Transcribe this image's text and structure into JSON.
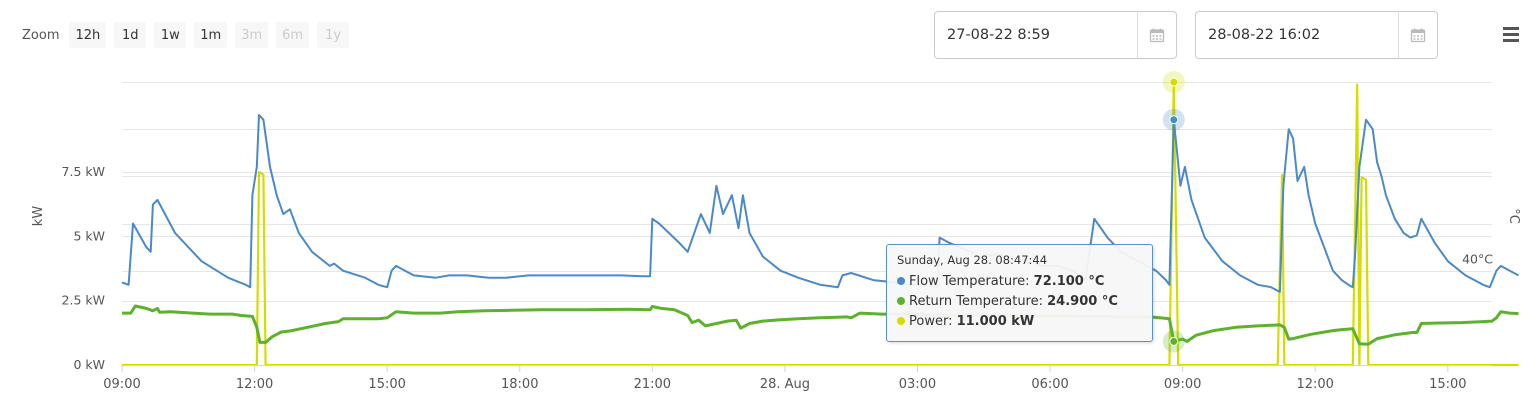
{
  "zoom": {
    "label": "Zoom",
    "buttons": [
      {
        "label": "12h",
        "enabled": true
      },
      {
        "label": "1d",
        "enabled": true
      },
      {
        "label": "1w",
        "enabled": true
      },
      {
        "label": "1m",
        "enabled": true
      },
      {
        "label": "3m",
        "enabled": false
      },
      {
        "label": "6m",
        "enabled": false
      },
      {
        "label": "1y",
        "enabled": false
      }
    ]
  },
  "range": {
    "from": "27-08-22 8:59",
    "to": "28-08-22 16:02"
  },
  "tooltip": {
    "title": "Sunday, Aug 28. 08:47:44",
    "rows": [
      {
        "name": "Flow Temperature",
        "value": "72.100 °C",
        "color": "#4a8ac8"
      },
      {
        "name": "Return Temperature",
        "value": "24.900 °C",
        "color": "#5db22d"
      },
      {
        "name": "Power",
        "value": "11.000 kW",
        "color": "#d4dd00"
      }
    ]
  },
  "chart_data": {
    "type": "line",
    "x_unit": "hours from 27 Aug 09:00",
    "xlim": [
      0,
      31
    ],
    "x_ticks": [
      {
        "t": 0,
        "label": "09:00"
      },
      {
        "t": 3,
        "label": "12:00"
      },
      {
        "t": 6,
        "label": "15:00"
      },
      {
        "t": 9,
        "label": "18:00"
      },
      {
        "t": 12,
        "label": "21:00"
      },
      {
        "t": 15,
        "label": "28. Aug"
      },
      {
        "t": 18,
        "label": "03:00"
      },
      {
        "t": 21,
        "label": "06:00"
      },
      {
        "t": 24,
        "label": "09:00"
      },
      {
        "t": 27,
        "label": "12:00"
      },
      {
        "t": 30,
        "label": "15:00"
      }
    ],
    "y_left": {
      "label": "kW",
      "ylim": [
        0,
        11
      ],
      "ticks": [
        {
          "v": 0,
          "label": "0 kW"
        },
        {
          "v": 2.5,
          "label": "2.5 kW"
        },
        {
          "v": 5,
          "label": "5 kW"
        },
        {
          "v": 7.5,
          "label": "7.5 kW"
        }
      ]
    },
    "y_right": {
      "label": "°C",
      "ylim": [
        20,
        80
      ],
      "ticks": [
        {
          "v": 40,
          "label": "40°C"
        }
      ]
    },
    "grid": true,
    "series": [
      {
        "name": "Flow Temperature",
        "axis": "right",
        "color": "#4a8ac8",
        "points": [
          [
            0,
            37.5
          ],
          [
            0.15,
            37
          ],
          [
            0.25,
            50
          ],
          [
            0.55,
            45
          ],
          [
            0.65,
            44
          ],
          [
            0.7,
            54
          ],
          [
            0.8,
            55
          ],
          [
            1.2,
            48
          ],
          [
            1.8,
            42
          ],
          [
            2.4,
            38.5
          ],
          [
            2.8,
            37
          ],
          [
            2.9,
            36.5
          ],
          [
            2.95,
            56
          ],
          [
            3.05,
            62
          ],
          [
            3.1,
            73
          ],
          [
            3.2,
            72
          ],
          [
            3.35,
            62
          ],
          [
            3.5,
            56
          ],
          [
            3.65,
            52
          ],
          [
            3.8,
            53
          ],
          [
            4.0,
            48
          ],
          [
            4.3,
            44
          ],
          [
            4.7,
            41
          ],
          [
            4.8,
            41.5
          ],
          [
            5.0,
            40
          ],
          [
            5.5,
            38.5
          ],
          [
            5.8,
            37
          ],
          [
            6.0,
            36.5
          ],
          [
            6.1,
            40
          ],
          [
            6.2,
            41
          ],
          [
            6.6,
            39
          ],
          [
            7.1,
            38.5
          ],
          [
            7.4,
            39
          ],
          [
            7.8,
            39
          ],
          [
            8.3,
            38.5
          ],
          [
            8.7,
            38.5
          ],
          [
            9.2,
            39
          ],
          [
            9.6,
            39
          ],
          [
            10.5,
            39
          ],
          [
            11.3,
            39
          ],
          [
            11.8,
            38.8
          ],
          [
            11.95,
            38.8
          ],
          [
            12.0,
            51
          ],
          [
            12.15,
            50
          ],
          [
            12.6,
            46
          ],
          [
            12.8,
            44
          ],
          [
            13.1,
            52
          ],
          [
            13.3,
            48
          ],
          [
            13.45,
            58
          ],
          [
            13.6,
            52
          ],
          [
            13.8,
            56
          ],
          [
            13.95,
            49
          ],
          [
            14.05,
            56
          ],
          [
            14.2,
            48
          ],
          [
            14.5,
            43
          ],
          [
            14.9,
            40
          ],
          [
            15.3,
            38.5
          ],
          [
            15.8,
            37
          ],
          [
            16.2,
            36.5
          ],
          [
            16.3,
            39
          ],
          [
            16.5,
            39.5
          ],
          [
            17.0,
            38
          ],
          [
            17.5,
            37.5
          ],
          [
            18.0,
            37
          ],
          [
            18.3,
            36.8
          ],
          [
            18.45,
            36.5
          ],
          [
            18.5,
            47
          ],
          [
            18.7,
            46
          ],
          [
            19.2,
            44
          ],
          [
            19.4,
            43
          ],
          [
            19.8,
            43.5
          ],
          [
            20.1,
            43
          ],
          [
            20.5,
            42
          ],
          [
            20.8,
            41
          ],
          [
            21.2,
            41
          ],
          [
            21.5,
            40
          ],
          [
            21.8,
            38
          ],
          [
            22.0,
            51
          ],
          [
            22.3,
            47
          ],
          [
            22.6,
            44
          ],
          [
            23.0,
            42
          ],
          [
            23.4,
            40
          ],
          [
            23.62,
            38
          ],
          [
            23.7,
            37
          ],
          [
            23.8,
            72
          ],
          [
            23.95,
            58
          ],
          [
            24.05,
            62
          ],
          [
            24.2,
            55
          ],
          [
            24.5,
            47
          ],
          [
            24.9,
            42
          ],
          [
            25.3,
            39
          ],
          [
            25.7,
            37
          ],
          [
            26.0,
            36.5
          ],
          [
            26.2,
            35.5
          ],
          [
            26.28,
            58
          ],
          [
            26.4,
            70
          ],
          [
            26.5,
            68
          ],
          [
            26.6,
            59
          ],
          [
            26.75,
            62
          ],
          [
            26.85,
            56
          ],
          [
            27.0,
            50
          ],
          [
            27.2,
            45
          ],
          [
            27.4,
            40
          ],
          [
            27.6,
            38
          ],
          [
            27.75,
            37
          ],
          [
            27.85,
            36.5
          ],
          [
            27.9,
            43
          ],
          [
            28.0,
            62
          ],
          [
            28.15,
            72
          ],
          [
            28.3,
            70
          ],
          [
            28.4,
            63
          ],
          [
            28.5,
            60
          ],
          [
            28.6,
            56
          ],
          [
            28.8,
            51
          ],
          [
            29.0,
            48
          ],
          [
            29.15,
            47
          ],
          [
            29.3,
            47.5
          ],
          [
            29.4,
            51
          ],
          [
            29.7,
            46
          ],
          [
            30.0,
            42
          ],
          [
            30.4,
            39
          ],
          [
            30.8,
            37
          ],
          [
            30.95,
            36.5
          ],
          [
            31.1,
            40
          ],
          [
            31.2,
            41
          ],
          [
            31.4,
            40
          ],
          [
            31.6,
            39
          ]
        ]
      },
      {
        "name": "Return Temperature",
        "axis": "right",
        "color": "#5db22d",
        "points": [
          [
            0,
            31
          ],
          [
            0.2,
            31
          ],
          [
            0.3,
            32.5
          ],
          [
            0.55,
            32
          ],
          [
            0.7,
            31.5
          ],
          [
            0.8,
            32
          ],
          [
            0.85,
            31.2
          ],
          [
            1.1,
            31.3
          ],
          [
            1.6,
            31
          ],
          [
            2.0,
            30.8
          ],
          [
            2.5,
            30.8
          ],
          [
            2.7,
            30.5
          ],
          [
            2.95,
            30.3
          ],
          [
            3.05,
            28
          ],
          [
            3.12,
            24.8
          ],
          [
            3.25,
            24.8
          ],
          [
            3.4,
            26
          ],
          [
            3.6,
            27
          ],
          [
            3.8,
            27.2
          ],
          [
            4.2,
            28
          ],
          [
            4.6,
            28.8
          ],
          [
            4.9,
            29.2
          ],
          [
            5.0,
            29.8
          ],
          [
            5.4,
            29.8
          ],
          [
            5.8,
            29.8
          ],
          [
            6.0,
            30
          ],
          [
            6.2,
            31.3
          ],
          [
            6.6,
            31
          ],
          [
            7.2,
            31
          ],
          [
            7.6,
            31.3
          ],
          [
            8.2,
            31.5
          ],
          [
            8.8,
            31.6
          ],
          [
            9.5,
            31.7
          ],
          [
            10.5,
            31.7
          ],
          [
            11.5,
            31.8
          ],
          [
            11.95,
            31.7
          ],
          [
            12.0,
            32.4
          ],
          [
            12.2,
            32
          ],
          [
            12.5,
            31.7
          ],
          [
            12.8,
            30.5
          ],
          [
            12.9,
            29
          ],
          [
            13.05,
            29.5
          ],
          [
            13.2,
            28.3
          ],
          [
            13.4,
            28.7
          ],
          [
            13.7,
            29.3
          ],
          [
            13.9,
            29.5
          ],
          [
            14.0,
            27.8
          ],
          [
            14.2,
            28.8
          ],
          [
            14.5,
            29.3
          ],
          [
            14.9,
            29.6
          ],
          [
            15.3,
            29.8
          ],
          [
            15.8,
            30
          ],
          [
            16.1,
            30.1
          ],
          [
            16.4,
            30.2
          ],
          [
            16.5,
            30
          ],
          [
            16.7,
            31
          ],
          [
            17.2,
            30.8
          ],
          [
            17.7,
            30.8
          ],
          [
            18.2,
            30.6
          ],
          [
            18.6,
            30.6
          ],
          [
            18.9,
            30.5
          ],
          [
            19.4,
            30.6
          ],
          [
            19.9,
            30.5
          ],
          [
            20.3,
            30.5
          ],
          [
            20.8,
            30.4
          ],
          [
            21.3,
            30.4
          ],
          [
            21.7,
            30.3
          ],
          [
            22.2,
            30.3
          ],
          [
            22.6,
            30.2
          ],
          [
            23.0,
            30.2
          ],
          [
            23.4,
            30.1
          ],
          [
            23.7,
            29.8
          ],
          [
            23.8,
            25
          ],
          [
            24.0,
            25.5
          ],
          [
            24.1,
            25
          ],
          [
            24.3,
            26.3
          ],
          [
            24.7,
            27.3
          ],
          [
            25.2,
            28
          ],
          [
            25.7,
            28.3
          ],
          [
            26.2,
            28.5
          ],
          [
            26.3,
            28
          ],
          [
            26.4,
            25.5
          ],
          [
            26.5,
            25.6
          ],
          [
            26.9,
            26.5
          ],
          [
            27.4,
            27.3
          ],
          [
            27.6,
            27.5
          ],
          [
            27.85,
            27.7
          ],
          [
            28.0,
            24.5
          ],
          [
            28.2,
            24.4
          ],
          [
            28.4,
            25.6
          ],
          [
            28.8,
            26.4
          ],
          [
            29.2,
            26.9
          ],
          [
            29.3,
            26.9
          ],
          [
            29.4,
            28.8
          ],
          [
            29.8,
            28.9
          ],
          [
            30.3,
            29
          ],
          [
            30.8,
            29.2
          ],
          [
            31.0,
            29.3
          ],
          [
            31.1,
            30
          ],
          [
            31.2,
            31.3
          ],
          [
            31.4,
            31
          ],
          [
            31.6,
            30.9
          ]
        ]
      },
      {
        "name": "Power",
        "axis": "left",
        "color": "#d4dd00",
        "points": [
          [
            0,
            0
          ],
          [
            2.95,
            0
          ],
          [
            3.05,
            0
          ],
          [
            3.1,
            7.5
          ],
          [
            3.2,
            7.4
          ],
          [
            3.25,
            0
          ],
          [
            23.7,
            0
          ],
          [
            23.8,
            11
          ],
          [
            23.9,
            0
          ],
          [
            26.15,
            0
          ],
          [
            26.25,
            7.4
          ],
          [
            26.3,
            0
          ],
          [
            27.85,
            0
          ],
          [
            27.95,
            10.9
          ],
          [
            28.0,
            0
          ],
          [
            28.05,
            7.3
          ],
          [
            28.15,
            7.2
          ],
          [
            28.2,
            0
          ],
          [
            31.6,
            0
          ]
        ]
      }
    ],
    "marker": {
      "t": 23.8
    }
  }
}
